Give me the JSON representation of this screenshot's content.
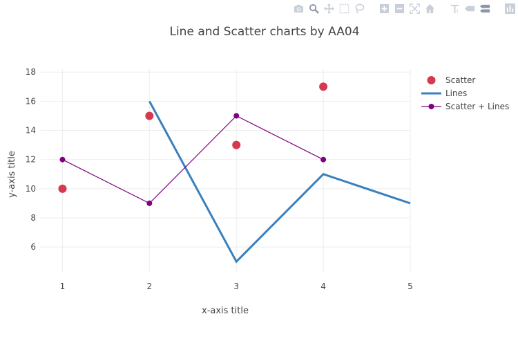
{
  "modebar": {
    "buttons": [
      {
        "name": "camera-icon"
      },
      {
        "name": "zoom-icon"
      },
      {
        "name": "pan-icon"
      },
      {
        "name": "box-select-icon"
      },
      {
        "name": "lasso-select-icon"
      },
      {
        "name": "zoom-in-icon"
      },
      {
        "name": "zoom-out-icon"
      },
      {
        "name": "autoscale-icon"
      },
      {
        "name": "home-icon"
      },
      {
        "name": "spike-lines-icon"
      },
      {
        "name": "hover-closest-icon"
      },
      {
        "name": "hover-compare-icon"
      },
      {
        "name": "plotly-logo-icon"
      }
    ]
  },
  "chart_data": {
    "type": "line",
    "title": "Line and Scatter charts by AA04",
    "xlabel": "x-axis title",
    "ylabel": "y-axis title",
    "xlim": [
      0.75,
      5
    ],
    "ylim": [
      4.3,
      18.2
    ],
    "x_ticks": [
      1,
      2,
      3,
      4,
      5
    ],
    "y_ticks": [
      6,
      8,
      10,
      12,
      14,
      16,
      18
    ],
    "grid": true,
    "legend_position": "top-right",
    "series": [
      {
        "name": "Scatter",
        "mode": "markers",
        "color": "#d6394f",
        "x": [
          1,
          2,
          3,
          4
        ],
        "y": [
          10,
          15,
          13,
          17
        ]
      },
      {
        "name": "Lines",
        "mode": "lines",
        "color": "#3a80bd",
        "x": [
          2,
          3,
          4,
          5
        ],
        "y": [
          16,
          5,
          11,
          9
        ]
      },
      {
        "name": "Scatter + Lines",
        "mode": "lines+markers",
        "color": "#800080",
        "x": [
          1,
          2,
          3,
          4
        ],
        "y": [
          12,
          9,
          15,
          12
        ]
      }
    ]
  }
}
